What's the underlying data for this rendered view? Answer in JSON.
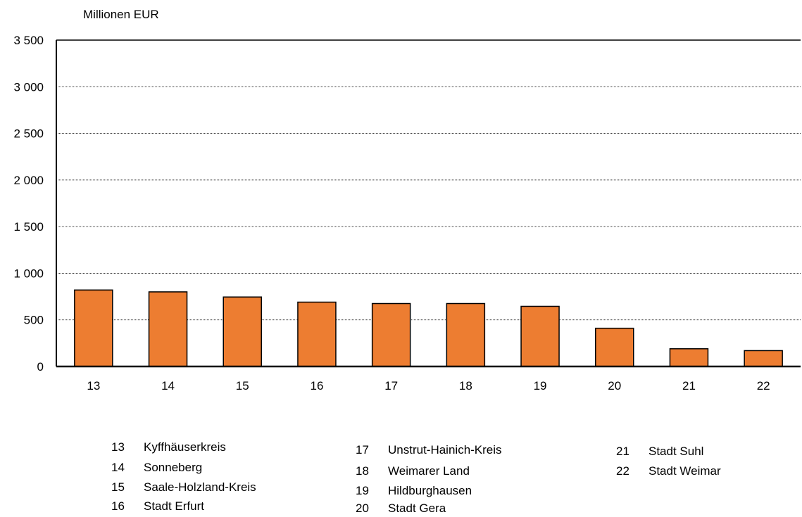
{
  "chart_data": {
    "type": "bar",
    "ylabel": "Millionen EUR",
    "ylim": [
      0,
      3500
    ],
    "yticks": [
      0,
      500,
      1000,
      1500,
      2000,
      2500,
      3000,
      3500
    ],
    "ytick_labels": [
      "0",
      "500",
      "1 000",
      "1 500",
      "2 000",
      "2 500",
      "3 000",
      "3 500"
    ],
    "categories": [
      "13",
      "14",
      "15",
      "16",
      "17",
      "18",
      "19",
      "20",
      "21",
      "22"
    ],
    "values": [
      820,
      800,
      745,
      690,
      675,
      675,
      645,
      410,
      190,
      170
    ],
    "grid": true,
    "bar_color": "#ED7D31"
  },
  "legend": [
    {
      "num": "13",
      "name": "Kyffhäuserkreis"
    },
    {
      "num": "14",
      "name": "Sonneberg"
    },
    {
      "num": "15",
      "name": "Saale-Holzland-Kreis"
    },
    {
      "num": "16",
      "name": "Stadt Erfurt"
    },
    {
      "num": "17",
      "name": "Unstrut-Hainich-Kreis"
    },
    {
      "num": "18",
      "name": "Weimarer Land"
    },
    {
      "num": "19",
      "name": "Hildburghausen"
    },
    {
      "num": "20",
      "name": "Stadt Gera"
    },
    {
      "num": "21",
      "name": "Stadt Suhl"
    },
    {
      "num": "22",
      "name": "Stadt Weimar"
    }
  ]
}
